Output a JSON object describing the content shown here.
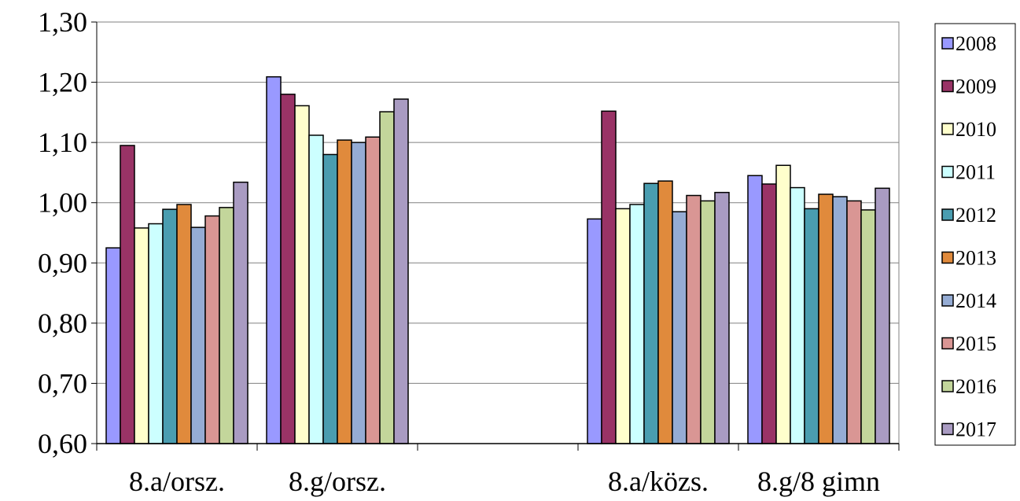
{
  "chart_data": {
    "type": "bar",
    "title": "",
    "xlabel": "",
    "ylabel": "",
    "ylim": [
      0.6,
      1.3
    ],
    "y_ticks": [
      "0,60",
      "0,70",
      "0,80",
      "0,90",
      "1,00",
      "1,10",
      "1,20",
      "1,30"
    ],
    "y_tick_values": [
      0.6,
      0.7,
      0.8,
      0.9,
      1.0,
      1.1,
      1.2,
      1.3
    ],
    "grid": true,
    "legend_position": "right",
    "categories": [
      "8.a/orsz.",
      "8.g/orsz.",
      "",
      "8.a/közs.",
      "8.g/8 gimn"
    ],
    "series": [
      {
        "name": "2008",
        "color": "#9999ff",
        "values": [
          0.925,
          1.209,
          null,
          0.973,
          1.045
        ]
      },
      {
        "name": "2009",
        "color": "#993366",
        "values": [
          1.095,
          1.18,
          null,
          1.152,
          1.031
        ]
      },
      {
        "name": "2010",
        "color": "#ffffcc",
        "values": [
          0.958,
          1.161,
          null,
          0.99,
          1.062
        ]
      },
      {
        "name": "2011",
        "color": "#ccffff",
        "values": [
          0.965,
          1.112,
          null,
          0.997,
          1.025
        ]
      },
      {
        "name": "2012",
        "color": "#4a9db0",
        "values": [
          0.989,
          1.08,
          null,
          1.032,
          0.99
        ]
      },
      {
        "name": "2013",
        "color": "#e08a3c",
        "values": [
          0.997,
          1.104,
          null,
          1.036,
          1.014
        ]
      },
      {
        "name": "2014",
        "color": "#95acd4",
        "values": [
          0.959,
          1.1,
          null,
          0.985,
          1.01
        ]
      },
      {
        "name": "2015",
        "color": "#d99694",
        "values": [
          0.978,
          1.109,
          null,
          1.012,
          1.003
        ]
      },
      {
        "name": "2016",
        "color": "#c3d69b",
        "values": [
          0.992,
          1.151,
          null,
          1.003,
          0.988
        ]
      },
      {
        "name": "2017",
        "color": "#a99bc2",
        "values": [
          1.034,
          1.172,
          null,
          1.017,
          1.024
        ]
      }
    ]
  }
}
